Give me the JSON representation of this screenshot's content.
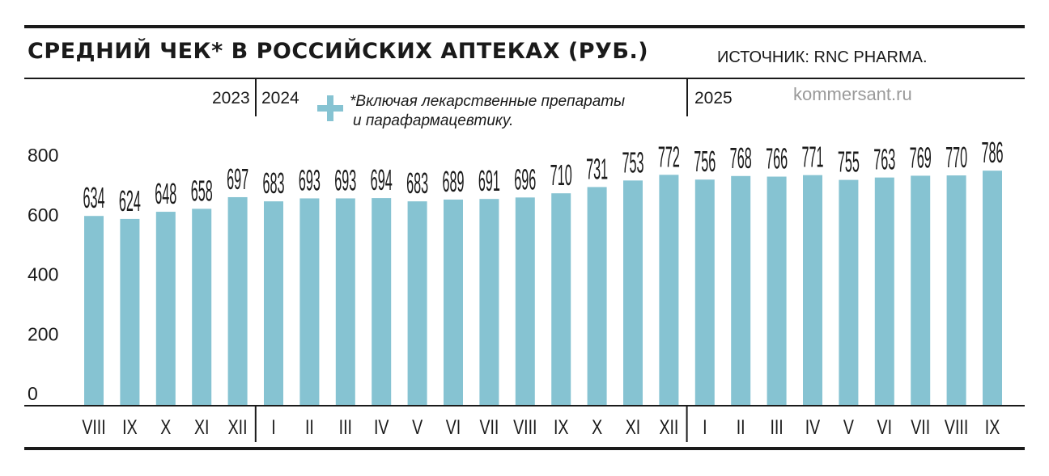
{
  "header": {
    "title": "СРЕДНИЙ ЧЕК* В РОССИЙСКИХ АПТЕКАХ (РУБ.)",
    "source": "ИСТОЧНИК: RNC PHARMA."
  },
  "footnote": {
    "line1": "*Включая лекарственные препараты",
    "line2": "и парафармацевтику."
  },
  "watermark": "kommersant.ru",
  "years": [
    "2023",
    "2024",
    "2025"
  ],
  "colors": {
    "bar": "#86c3d2",
    "text": "#1a1a1a",
    "watermark": "#9a9a9a"
  },
  "chart_data": {
    "type": "bar",
    "title": "СРЕДНИЙ ЧЕК* В РОССИЙСКИХ АПТЕКАХ (РУБ.)",
    "categories": [
      "VIII",
      "IX",
      "X",
      "XI",
      "XII",
      "I",
      "II",
      "III",
      "IV",
      "V",
      "VI",
      "VII",
      "VIII",
      "IX",
      "X",
      "XI",
      "XII",
      "I",
      "II",
      "III",
      "IV",
      "V",
      "VI",
      "VII",
      "VIII",
      "IX"
    ],
    "year_groups": [
      {
        "label": "2023",
        "count": 5
      },
      {
        "label": "2024",
        "count": 12
      },
      {
        "label": "2025",
        "count": 9
      }
    ],
    "values": [
      634,
      624,
      648,
      658,
      697,
      683,
      693,
      693,
      694,
      683,
      689,
      691,
      696,
      710,
      731,
      753,
      772,
      756,
      768,
      766,
      771,
      755,
      763,
      769,
      770,
      786
    ],
    "ylim": [
      0,
      800
    ],
    "yticks": [
      0,
      200,
      400,
      600,
      800
    ],
    "grid": false,
    "xlabel": "",
    "ylabel": ""
  }
}
